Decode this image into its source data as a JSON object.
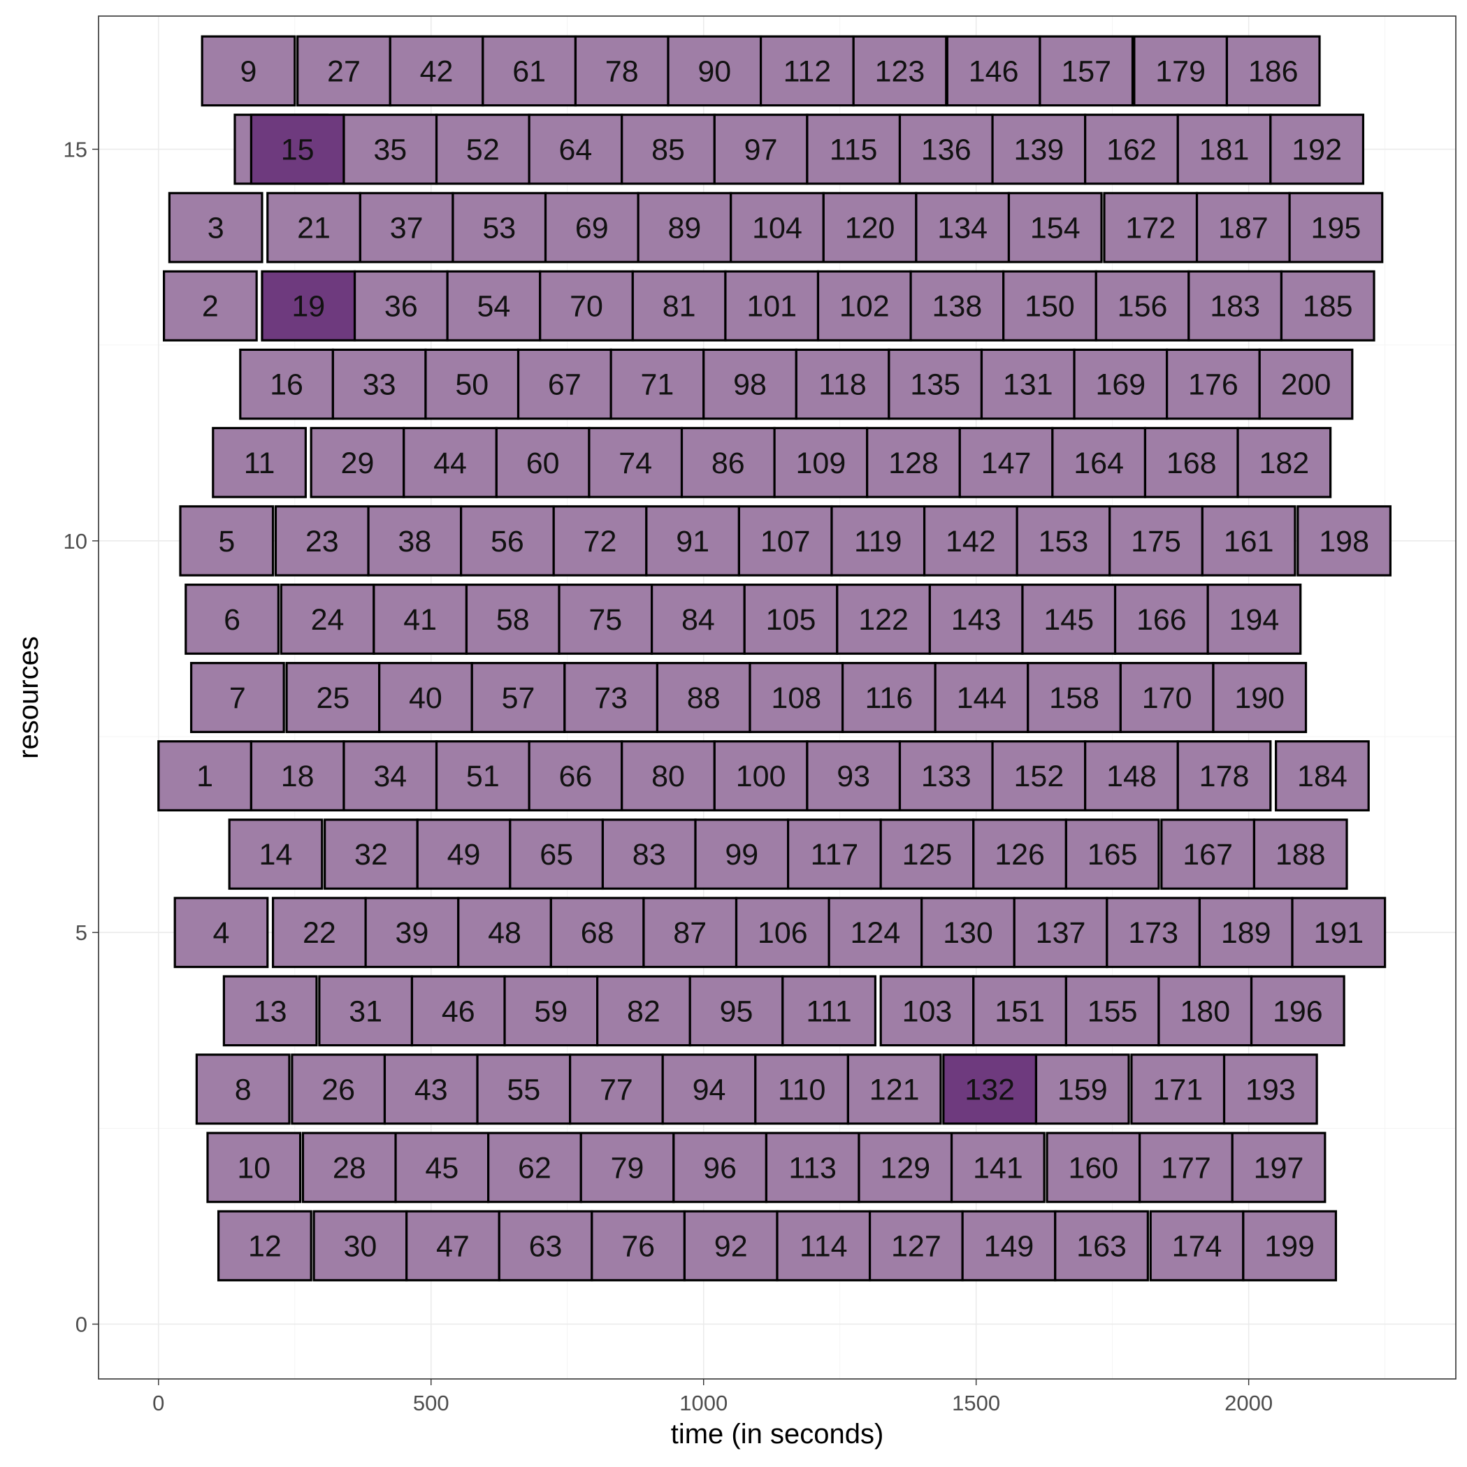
{
  "chart_data": {
    "type": "gantt",
    "xlabel": "time (in seconds)",
    "ylabel": "resources",
    "xlim": [
      -110,
      2380
    ],
    "ylim": [
      -0.7,
      16.7
    ],
    "xticks": [
      0,
      500,
      1000,
      1500,
      2000
    ],
    "yticks": [
      0,
      5,
      10,
      15
    ],
    "grid": true,
    "task_duration": 170,
    "fill_color": "#9f7ea6",
    "highlight_color": "#6e3a7e",
    "outline_color": "#000000",
    "rows": [
      {
        "resource": 16,
        "starts": [
          80,
          255,
          425,
          595,
          765,
          935,
          1105,
          1275,
          1447,
          1617,
          1790,
          1960
        ],
        "labels": [
          "9",
          "27",
          "42",
          "61",
          "78",
          "90",
          "112",
          "123",
          "146",
          "157",
          "179",
          "186"
        ],
        "highlight": []
      },
      {
        "resource": 15,
        "starts": [
          140,
          170,
          340,
          510,
          680,
          850,
          1020,
          1190,
          1360,
          1530,
          1700,
          1870,
          2040
        ],
        "labels": [
          "",
          "15",
          "35",
          "52",
          "64",
          "85",
          "97",
          "115",
          "136",
          "139",
          "162",
          "181",
          "192"
        ],
        "highlight": [
          "15"
        ]
      },
      {
        "resource": 14,
        "starts": [
          20,
          200,
          370,
          540,
          710,
          880,
          1050,
          1220,
          1390,
          1560,
          1735,
          1905,
          2075
        ],
        "labels": [
          "3",
          "21",
          "37",
          "53",
          "69",
          "89",
          "104",
          "120",
          "134",
          "154",
          "172",
          "187",
          "195"
        ],
        "highlight": []
      },
      {
        "resource": 13,
        "starts": [
          10,
          190,
          360,
          530,
          700,
          870,
          1040,
          1210,
          1380,
          1550,
          1720,
          1890,
          2060
        ],
        "labels": [
          "2",
          "19",
          "36",
          "54",
          "70",
          "81",
          "101",
          "102",
          "138",
          "150",
          "156",
          "183",
          "185"
        ],
        "highlight": [
          "19"
        ]
      },
      {
        "resource": 12,
        "starts": [
          150,
          320,
          490,
          660,
          830,
          1000,
          1170,
          1340,
          1510,
          1680,
          1850,
          2020
        ],
        "labels": [
          "16",
          "33",
          "50",
          "67",
          "71",
          "98",
          "118",
          "135",
          "131",
          "169",
          "176",
          "200"
        ],
        "highlight": []
      },
      {
        "resource": 11,
        "starts": [
          100,
          280,
          450,
          620,
          790,
          960,
          1130,
          1300,
          1470,
          1640,
          1810,
          1980
        ],
        "labels": [
          "11",
          "29",
          "44",
          "60",
          "74",
          "86",
          "109",
          "128",
          "147",
          "164",
          "168",
          "182"
        ],
        "highlight": []
      },
      {
        "resource": 10,
        "starts": [
          40,
          215,
          385,
          555,
          725,
          895,
          1065,
          1235,
          1405,
          1575,
          1745,
          1915,
          2090
        ],
        "labels": [
          "5",
          "23",
          "38",
          "56",
          "72",
          "91",
          "107",
          "119",
          "142",
          "153",
          "175",
          "161",
          "198"
        ],
        "highlight": []
      },
      {
        "resource": 9,
        "starts": [
          50,
          225,
          395,
          565,
          735,
          905,
          1075,
          1245,
          1415,
          1585,
          1755,
          1925
        ],
        "labels": [
          "6",
          "24",
          "41",
          "58",
          "75",
          "84",
          "105",
          "122",
          "143",
          "145",
          "166",
          "194"
        ],
        "highlight": []
      },
      {
        "resource": 8,
        "starts": [
          60,
          235,
          405,
          575,
          745,
          915,
          1085,
          1255,
          1425,
          1595,
          1765,
          1935
        ],
        "labels": [
          "7",
          "25",
          "40",
          "57",
          "73",
          "88",
          "108",
          "116",
          "144",
          "158",
          "170",
          "190"
        ],
        "highlight": []
      },
      {
        "resource": 7,
        "starts": [
          0,
          170,
          340,
          510,
          680,
          850,
          1020,
          1190,
          1360,
          1530,
          1700,
          1870,
          2050
        ],
        "labels": [
          "1",
          "18",
          "34",
          "51",
          "66",
          "80",
          "100",
          "93",
          "133",
          "152",
          "148",
          "178",
          "184"
        ],
        "highlight": []
      },
      {
        "resource": 6,
        "starts": [
          130,
          305,
          475,
          645,
          815,
          985,
          1155,
          1325,
          1495,
          1665,
          1840,
          2010
        ],
        "labels": [
          "14",
          "32",
          "49",
          "65",
          "83",
          "99",
          "117",
          "125",
          "126",
          "165",
          "167",
          "188"
        ],
        "highlight": []
      },
      {
        "resource": 5,
        "starts": [
          30,
          210,
          380,
          550,
          720,
          890,
          1060,
          1230,
          1400,
          1570,
          1740,
          1910,
          2080
        ],
        "labels": [
          "4",
          "22",
          "39",
          "48",
          "68",
          "87",
          "106",
          "124",
          "130",
          "137",
          "173",
          "189",
          "191"
        ],
        "highlight": []
      },
      {
        "resource": 4,
        "starts": [
          120,
          295,
          465,
          635,
          805,
          975,
          1145,
          1325,
          1495,
          1665,
          1835,
          2005
        ],
        "labels": [
          "13",
          "31",
          "46",
          "59",
          "82",
          "95",
          "111",
          "103",
          "151",
          "155",
          "180",
          "196"
        ],
        "highlight": []
      },
      {
        "resource": 3,
        "starts": [
          70,
          245,
          415,
          585,
          755,
          925,
          1095,
          1265,
          1440,
          1610,
          1785,
          1955
        ],
        "labels": [
          "8",
          "26",
          "43",
          "55",
          "77",
          "94",
          "110",
          "121",
          "132",
          "159",
          "171",
          "193"
        ],
        "highlight": [
          "132"
        ]
      },
      {
        "resource": 2,
        "starts": [
          90,
          265,
          435,
          605,
          775,
          945,
          1115,
          1285,
          1455,
          1630,
          1800,
          1970
        ],
        "labels": [
          "10",
          "28",
          "45",
          "62",
          "79",
          "96",
          "113",
          "129",
          "141",
          "160",
          "177",
          "197"
        ],
        "highlight": []
      },
      {
        "resource": 1,
        "starts": [
          110,
          285,
          455,
          625,
          795,
          965,
          1135,
          1305,
          1475,
          1645,
          1820,
          1990
        ],
        "labels": [
          "12",
          "30",
          "47",
          "63",
          "76",
          "92",
          "114",
          "127",
          "149",
          "163",
          "174",
          "199"
        ],
        "highlight": []
      }
    ]
  }
}
